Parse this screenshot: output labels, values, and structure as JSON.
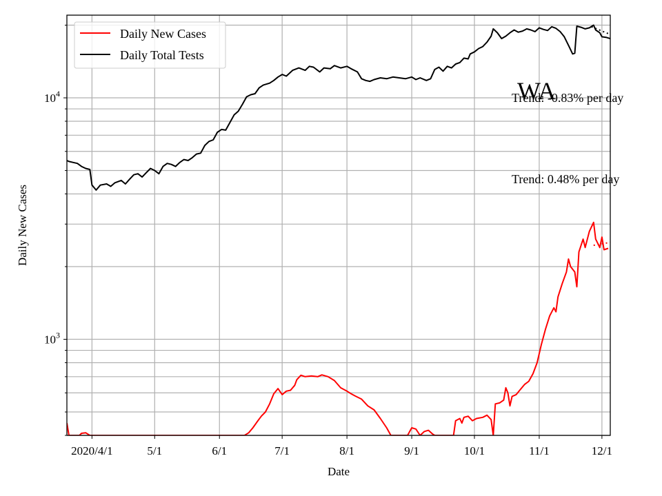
{
  "chart_data": {
    "type": "line",
    "title": "",
    "xlabel": "Date",
    "ylabel": "Daily New Cases",
    "yscale": "log",
    "ylim": [
      400,
      22000
    ],
    "xlim": [
      "2020-03-20",
      "2020-12-05"
    ],
    "grid": true,
    "legend_position": "top-left",
    "region_label": "WA",
    "x_ticks": [
      {
        "date": "2020-04-01",
        "label": "2020/4/1"
      },
      {
        "date": "2020-05-01",
        "label": "5/1"
      },
      {
        "date": "2020-06-01",
        "label": "6/1"
      },
      {
        "date": "2020-07-01",
        "label": "7/1"
      },
      {
        "date": "2020-08-01",
        "label": "8/1"
      },
      {
        "date": "2020-09-01",
        "label": "9/1"
      },
      {
        "date": "2020-10-01",
        "label": "10/1"
      },
      {
        "date": "2020-11-01",
        "label": "11/1"
      },
      {
        "date": "2020-12-01",
        "label": "12/1"
      }
    ],
    "y_ticks": [
      {
        "value": 1000,
        "base": "10",
        "exp": "3"
      },
      {
        "value": 10000,
        "base": "10",
        "exp": "4"
      }
    ],
    "annotations": [
      {
        "text": "Trend: -0.83% per day",
        "series": "Daily Total Tests"
      },
      {
        "text": "Trend: 0.48% per day",
        "series": "Daily New Cases"
      }
    ],
    "series": [
      {
        "name": "Daily New Cases",
        "color": "#ff0000",
        "points": [
          [
            "2020-03-20",
            450
          ],
          [
            "2020-03-21",
            400
          ],
          [
            "2020-03-26",
            400
          ],
          [
            "2020-03-27",
            408
          ],
          [
            "2020-03-29",
            410
          ],
          [
            "2020-03-31",
            400
          ],
          [
            "2020-06-13",
            400
          ],
          [
            "2020-06-15",
            410
          ],
          [
            "2020-06-17",
            430
          ],
          [
            "2020-06-19",
            455
          ],
          [
            "2020-06-21",
            480
          ],
          [
            "2020-06-23",
            500
          ],
          [
            "2020-06-25",
            540
          ],
          [
            "2020-06-27",
            595
          ],
          [
            "2020-06-29",
            625
          ],
          [
            "2020-07-01",
            590
          ],
          [
            "2020-07-03",
            610
          ],
          [
            "2020-07-05",
            615
          ],
          [
            "2020-07-07",
            645
          ],
          [
            "2020-07-08",
            680
          ],
          [
            "2020-07-10",
            710
          ],
          [
            "2020-07-12",
            700
          ],
          [
            "2020-07-15",
            705
          ],
          [
            "2020-07-18",
            700
          ],
          [
            "2020-07-20",
            712
          ],
          [
            "2020-07-23",
            700
          ],
          [
            "2020-07-26",
            675
          ],
          [
            "2020-07-29",
            630
          ],
          [
            "2020-08-01",
            610
          ],
          [
            "2020-08-03",
            595
          ],
          [
            "2020-08-05",
            582
          ],
          [
            "2020-08-08",
            565
          ],
          [
            "2020-08-11",
            530
          ],
          [
            "2020-08-14",
            510
          ],
          [
            "2020-08-17",
            470
          ],
          [
            "2020-08-20",
            430
          ],
          [
            "2020-08-22",
            400
          ],
          [
            "2020-08-30",
            400
          ],
          [
            "2020-09-01",
            430
          ],
          [
            "2020-09-03",
            425
          ],
          [
            "2020-09-05",
            400
          ],
          [
            "2020-09-07",
            415
          ],
          [
            "2020-09-09",
            420
          ],
          [
            "2020-09-11",
            405
          ],
          [
            "2020-09-12",
            400
          ],
          [
            "2020-09-21",
            400
          ],
          [
            "2020-09-22",
            460
          ],
          [
            "2020-09-24",
            470
          ],
          [
            "2020-09-25",
            450
          ],
          [
            "2020-09-26",
            475
          ],
          [
            "2020-09-28",
            480
          ],
          [
            "2020-09-30",
            460
          ],
          [
            "2020-10-02",
            470
          ],
          [
            "2020-10-05",
            475
          ],
          [
            "2020-10-07",
            485
          ],
          [
            "2020-10-09",
            465
          ],
          [
            "2020-10-10",
            400
          ],
          [
            "2020-10-11",
            540
          ],
          [
            "2020-10-13",
            545
          ],
          [
            "2020-10-15",
            560
          ],
          [
            "2020-10-16",
            630
          ],
          [
            "2020-10-17",
            600
          ],
          [
            "2020-10-18",
            530
          ],
          [
            "2020-10-19",
            580
          ],
          [
            "2020-10-21",
            590
          ],
          [
            "2020-10-23",
            620
          ],
          [
            "2020-10-25",
            650
          ],
          [
            "2020-10-27",
            670
          ],
          [
            "2020-10-29",
            720
          ],
          [
            "2020-10-31",
            800
          ],
          [
            "2020-11-02",
            950
          ],
          [
            "2020-11-04",
            1100
          ],
          [
            "2020-11-06",
            1250
          ],
          [
            "2020-11-08",
            1350
          ],
          [
            "2020-11-09",
            1300
          ],
          [
            "2020-11-10",
            1500
          ],
          [
            "2020-11-12",
            1700
          ],
          [
            "2020-11-14",
            1900
          ],
          [
            "2020-11-15",
            2150
          ],
          [
            "2020-11-16",
            2000
          ],
          [
            "2020-11-18",
            1900
          ],
          [
            "2020-11-19",
            1650
          ],
          [
            "2020-11-20",
            2300
          ],
          [
            "2020-11-22",
            2600
          ],
          [
            "2020-11-23",
            2400
          ],
          [
            "2020-11-25",
            2800
          ],
          [
            "2020-11-27",
            3050
          ],
          [
            "2020-11-28",
            2600
          ],
          [
            "2020-11-30",
            2400
          ],
          [
            "2020-12-01",
            2650
          ],
          [
            "2020-12-02",
            2350
          ],
          [
            "2020-12-04",
            2380
          ]
        ],
        "trend_points": [
          [
            "2020-11-27",
            2450
          ],
          [
            "2020-12-05",
            2520
          ]
        ]
      },
      {
        "name": "Daily Total Tests",
        "color": "#000000",
        "points": [
          [
            "2020-03-20",
            5500
          ],
          [
            "2020-03-21",
            5450
          ],
          [
            "2020-03-23",
            5400
          ],
          [
            "2020-03-25",
            5350
          ],
          [
            "2020-03-27",
            5200
          ],
          [
            "2020-03-29",
            5100
          ],
          [
            "2020-03-31",
            5050
          ],
          [
            "2020-04-01",
            4350
          ],
          [
            "2020-04-03",
            4150
          ],
          [
            "2020-04-05",
            4350
          ],
          [
            "2020-04-08",
            4400
          ],
          [
            "2020-04-10",
            4300
          ],
          [
            "2020-04-12",
            4450
          ],
          [
            "2020-04-15",
            4550
          ],
          [
            "2020-04-17",
            4400
          ],
          [
            "2020-04-19",
            4600
          ],
          [
            "2020-04-21",
            4800
          ],
          [
            "2020-04-23",
            4850
          ],
          [
            "2020-04-25",
            4700
          ],
          [
            "2020-04-27",
            4900
          ],
          [
            "2020-04-29",
            5100
          ],
          [
            "2020-05-01",
            5000
          ],
          [
            "2020-05-03",
            4850
          ],
          [
            "2020-05-05",
            5200
          ],
          [
            "2020-05-07",
            5350
          ],
          [
            "2020-05-09",
            5300
          ],
          [
            "2020-05-11",
            5200
          ],
          [
            "2020-05-13",
            5400
          ],
          [
            "2020-05-15",
            5550
          ],
          [
            "2020-05-17",
            5500
          ],
          [
            "2020-05-19",
            5650
          ],
          [
            "2020-05-21",
            5850
          ],
          [
            "2020-05-23",
            5900
          ],
          [
            "2020-05-25",
            6350
          ],
          [
            "2020-05-27",
            6600
          ],
          [
            "2020-05-29",
            6700
          ],
          [
            "2020-05-31",
            7200
          ],
          [
            "2020-06-02",
            7400
          ],
          [
            "2020-06-04",
            7350
          ],
          [
            "2020-06-06",
            7900
          ],
          [
            "2020-06-08",
            8500
          ],
          [
            "2020-06-10",
            8800
          ],
          [
            "2020-06-12",
            9400
          ],
          [
            "2020-06-14",
            10100
          ],
          [
            "2020-06-16",
            10300
          ],
          [
            "2020-06-18",
            10400
          ],
          [
            "2020-06-20",
            11000
          ],
          [
            "2020-06-22",
            11300
          ],
          [
            "2020-06-25",
            11500
          ],
          [
            "2020-06-27",
            11800
          ],
          [
            "2020-06-29",
            12200
          ],
          [
            "2020-07-01",
            12500
          ],
          [
            "2020-07-03",
            12300
          ],
          [
            "2020-07-06",
            13000
          ],
          [
            "2020-07-09",
            13300
          ],
          [
            "2020-07-12",
            13000
          ],
          [
            "2020-07-14",
            13500
          ],
          [
            "2020-07-16",
            13400
          ],
          [
            "2020-07-19",
            12800
          ],
          [
            "2020-07-21",
            13300
          ],
          [
            "2020-07-24",
            13200
          ],
          [
            "2020-07-26",
            13600
          ],
          [
            "2020-07-29",
            13300
          ],
          [
            "2020-08-01",
            13500
          ],
          [
            "2020-08-03",
            13200
          ],
          [
            "2020-08-06",
            12800
          ],
          [
            "2020-08-08",
            12000
          ],
          [
            "2020-08-10",
            11800
          ],
          [
            "2020-08-12",
            11700
          ],
          [
            "2020-08-14",
            11900
          ],
          [
            "2020-08-17",
            12100
          ],
          [
            "2020-08-20",
            12000
          ],
          [
            "2020-08-23",
            12200
          ],
          [
            "2020-08-26",
            12100
          ],
          [
            "2020-08-29",
            12000
          ],
          [
            "2020-09-01",
            12200
          ],
          [
            "2020-09-03",
            11900
          ],
          [
            "2020-09-05",
            12100
          ],
          [
            "2020-09-08",
            11800
          ],
          [
            "2020-09-10",
            12000
          ],
          [
            "2020-09-12",
            13100
          ],
          [
            "2020-09-14",
            13400
          ],
          [
            "2020-09-16",
            12900
          ],
          [
            "2020-09-18",
            13500
          ],
          [
            "2020-09-20",
            13300
          ],
          [
            "2020-09-22",
            13800
          ],
          [
            "2020-09-24",
            14000
          ],
          [
            "2020-09-26",
            14600
          ],
          [
            "2020-09-28",
            14500
          ],
          [
            "2020-09-29",
            15200
          ],
          [
            "2020-10-01",
            15500
          ],
          [
            "2020-10-03",
            16000
          ],
          [
            "2020-10-05",
            16300
          ],
          [
            "2020-10-07",
            17000
          ],
          [
            "2020-10-09",
            18000
          ],
          [
            "2020-10-10",
            19300
          ],
          [
            "2020-10-12",
            18600
          ],
          [
            "2020-10-14",
            17600
          ],
          [
            "2020-10-16",
            18000
          ],
          [
            "2020-10-18",
            18600
          ],
          [
            "2020-10-20",
            19100
          ],
          [
            "2020-10-22",
            18700
          ],
          [
            "2020-10-24",
            18900
          ],
          [
            "2020-10-26",
            19300
          ],
          [
            "2020-10-28",
            19100
          ],
          [
            "2020-10-30",
            18800
          ],
          [
            "2020-11-01",
            19500
          ],
          [
            "2020-11-03",
            19200
          ],
          [
            "2020-11-05",
            19000
          ],
          [
            "2020-11-07",
            19700
          ],
          [
            "2020-11-09",
            19400
          ],
          [
            "2020-11-11",
            18800
          ],
          [
            "2020-11-13",
            17900
          ],
          [
            "2020-11-15",
            16500
          ],
          [
            "2020-11-17",
            15200
          ],
          [
            "2020-11-18",
            15300
          ],
          [
            "2020-11-19",
            19800
          ],
          [
            "2020-11-21",
            19600
          ],
          [
            "2020-11-23",
            19300
          ],
          [
            "2020-11-25",
            19500
          ],
          [
            "2020-11-27",
            20000
          ],
          [
            "2020-11-28",
            19100
          ],
          [
            "2020-11-30",
            18600
          ],
          [
            "2020-12-01",
            17900
          ],
          [
            "2020-12-03",
            17800
          ],
          [
            "2020-12-05",
            17600
          ]
        ],
        "trend_points": [
          [
            "2020-11-26",
            19700
          ],
          [
            "2020-12-05",
            18300
          ]
        ]
      }
    ]
  }
}
